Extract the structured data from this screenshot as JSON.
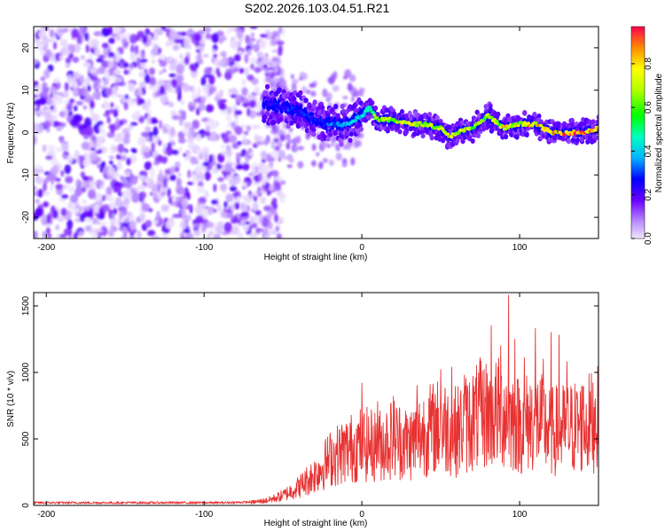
{
  "title": "S202.2026.103.04.51.R21",
  "chart_data": [
    {
      "type": "heatmap",
      "name": "spectrogram",
      "xlabel": "Height of straight line (km)",
      "ylabel": "Frequency (Hz)",
      "xlim": [
        -208,
        150
      ],
      "ylim": [
        -25,
        25
      ],
      "xticks": [
        -200,
        -100,
        0,
        100
      ],
      "yticks": [
        -20,
        -10,
        0,
        10,
        20
      ],
      "colorbar": {
        "label": "Normalized spectral amplitude",
        "range": [
          0,
          0.97
        ],
        "ticks": [
          0.0,
          0.2,
          0.4,
          0.6,
          0.8
        ]
      },
      "ridge": {
        "x": [
          -60,
          -50,
          -40,
          -30,
          -20,
          -10,
          0,
          5,
          10,
          20,
          30,
          40,
          50,
          55,
          60,
          70,
          80,
          90,
          100,
          110,
          120,
          130,
          140,
          150
        ],
        "y": [
          7,
          6,
          5,
          3,
          2,
          2,
          4,
          6,
          3,
          3,
          2,
          2,
          1,
          -1,
          0,
          1,
          4,
          1,
          2,
          2,
          0,
          0,
          0,
          1
        ],
        "amplitude": [
          0.25,
          0.3,
          0.3,
          0.3,
          0.35,
          0.4,
          0.45,
          0.55,
          0.7,
          0.75,
          0.8,
          0.8,
          0.75,
          0.85,
          0.8,
          0.75,
          0.7,
          0.8,
          0.8,
          0.85,
          0.85,
          0.95,
          0.95,
          0.95
        ]
      }
    },
    {
      "type": "line",
      "name": "snr",
      "xlabel": "Height of straight line (km)",
      "ylabel": "SNR (10 * v/v)",
      "xlim": [
        -208,
        150
      ],
      "ylim": [
        0,
        1600
      ],
      "xticks": [
        -200,
        -100,
        0,
        100
      ],
      "yticks": [
        0,
        500,
        1000,
        1500
      ],
      "color": "#e83232",
      "series": [
        {
          "name": "SNR",
          "x": [
            -208,
            -180,
            -150,
            -120,
            -90,
            -70,
            -60,
            -50,
            -40,
            -30,
            -20,
            -10,
            0,
            10,
            20,
            30,
            40,
            50,
            60,
            70,
            80,
            90,
            100,
            110,
            120,
            130,
            140,
            150
          ],
          "y": [
            20,
            20,
            20,
            20,
            20,
            25,
            40,
            80,
            150,
            250,
            380,
            450,
            500,
            480,
            550,
            500,
            600,
            650,
            600,
            700,
            750,
            750,
            650,
            700,
            600,
            620,
            650,
            700
          ],
          "peaks": {
            "x": [
              0,
              10,
              20,
              35,
              50,
              57,
              65,
              75,
              82,
              88,
              93,
              97,
              103,
              110,
              115,
              120,
              125,
              130,
              140,
              148
            ],
            "y": [
              920,
              780,
              820,
              900,
              1020,
              1040,
              980,
              1110,
              1350,
              1200,
              1580,
              1250,
              1110,
              1330,
              1100,
              1300,
              1280,
              1080,
              900,
              800
            ]
          }
        }
      ]
    }
  ]
}
